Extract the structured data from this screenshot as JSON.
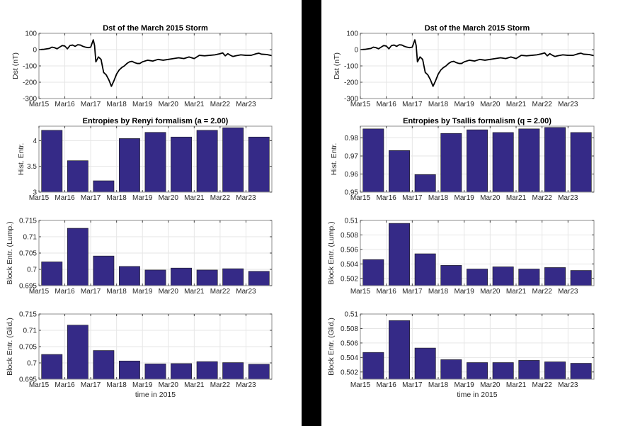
{
  "figure": {
    "panels": [
      {
        "side": "left",
        "xlabel_bottom": "time in 2015"
      },
      {
        "side": "right",
        "xlabel_bottom": "time in 2015"
      }
    ]
  },
  "chart_data": [
    {
      "id": "left-dst",
      "type": "line",
      "title": "Dst of the March 2015 Storm",
      "xlabel": "",
      "ylabel": "Dst (nT)",
      "ylim": [
        -300,
        100
      ],
      "yticks": [
        100,
        0,
        -100,
        -200,
        -300
      ],
      "xlim": [
        0,
        9
      ],
      "xticks": [
        "Mar15",
        "Mar16",
        "Mar17",
        "Mar18",
        "Mar19",
        "Mar20",
        "Mar21",
        "Mar22",
        "Mar23"
      ],
      "grid": true,
      "color": "#000000",
      "x": [
        0,
        0.2,
        0.4,
        0.5,
        0.6,
        0.7,
        0.8,
        0.9,
        1.0,
        1.1,
        1.2,
        1.3,
        1.4,
        1.5,
        1.6,
        1.7,
        1.8,
        1.9,
        2.0,
        2.1,
        2.15,
        2.2,
        2.3,
        2.4,
        2.5,
        2.6,
        2.7,
        2.8,
        2.9,
        3.0,
        3.1,
        3.2,
        3.3,
        3.4,
        3.5,
        3.6,
        3.7,
        3.8,
        3.9,
        4.0,
        4.2,
        4.4,
        4.6,
        4.8,
        5.0,
        5.2,
        5.4,
        5.6,
        5.8,
        6.0,
        6.2,
        6.4,
        6.6,
        6.8,
        7.0,
        7.1,
        7.2,
        7.3,
        7.4,
        7.5,
        7.6,
        7.8,
        8.0,
        8.2,
        8.4,
        8.5,
        8.6,
        8.8,
        9.0
      ],
      "y": [
        0,
        2,
        7,
        15,
        12,
        5,
        15,
        25,
        22,
        5,
        25,
        28,
        20,
        30,
        28,
        20,
        15,
        12,
        15,
        60,
        25,
        -75,
        -45,
        -60,
        -140,
        -155,
        -185,
        -225,
        -190,
        -150,
        -125,
        -110,
        -100,
        -85,
        -75,
        -72,
        -80,
        -85,
        -85,
        -75,
        -65,
        -70,
        -60,
        -65,
        -60,
        -55,
        -50,
        -55,
        -45,
        -55,
        -35,
        -38,
        -35,
        -32,
        -25,
        -20,
        -38,
        -25,
        -35,
        -42,
        -38,
        -32,
        -35,
        -35,
        -25,
        -22,
        -28,
        -30,
        -37
      ]
    },
    {
      "id": "left-renyi",
      "type": "bar",
      "title": "Entropies by Renyi formalism (a = 2.00)",
      "xlabel": "",
      "ylabel": "Hist. Entr.",
      "ylim": [
        3,
        4.28
      ],
      "yticks": [
        3,
        3.5,
        4
      ],
      "ytick_labels": [
        "3",
        "3.5",
        "4"
      ],
      "categories": [
        "Mar15",
        "Mar16",
        "Mar17",
        "Mar18",
        "Mar19",
        "Mar20",
        "Mar21",
        "Mar22",
        "Mar23"
      ],
      "values": [
        4.2,
        3.61,
        3.22,
        4.04,
        4.16,
        4.07,
        4.2,
        4.25,
        4.07
      ],
      "grid": true,
      "color": "#352a87"
    },
    {
      "id": "left-lump",
      "type": "bar",
      "title": "",
      "xlabel": "",
      "ylabel": "Block Entr. (Lump.)",
      "ylim": [
        0.695,
        0.715
      ],
      "yticks": [
        0.695,
        0.7,
        0.705,
        0.71,
        0.715
      ],
      "ytick_labels": [
        "0.695",
        "0.7",
        "0.705",
        "0.71",
        "0.715"
      ],
      "categories": [
        "Mar15",
        "Mar16",
        "Mar17",
        "Mar18",
        "Mar19",
        "Mar20",
        "Mar21",
        "Mar22",
        "Mar23"
      ],
      "values": [
        0.7023,
        0.7126,
        0.7041,
        0.7009,
        0.6998,
        0.7004,
        0.6998,
        0.7002,
        0.6994
      ],
      "grid": true,
      "color": "#352a87"
    },
    {
      "id": "left-glid",
      "type": "bar",
      "title": "",
      "xlabel": "time in 2015",
      "ylabel": "Block Entr. (Glid.)",
      "ylim": [
        0.695,
        0.715
      ],
      "yticks": [
        0.695,
        0.7,
        0.705,
        0.71,
        0.715
      ],
      "ytick_labels": [
        "0.695",
        "0.7",
        "0.705",
        "0.71",
        "0.715"
      ],
      "categories": [
        "Mar15",
        "Mar16",
        "Mar17",
        "Mar18",
        "Mar19",
        "Mar20",
        "Mar21",
        "Mar22",
        "Mar23"
      ],
      "values": [
        0.7026,
        0.7116,
        0.7038,
        0.7006,
        0.6997,
        0.6998,
        0.7004,
        0.7001,
        0.6996
      ],
      "grid": true,
      "color": "#352a87"
    },
    {
      "id": "right-dst",
      "type": "line",
      "title": "Dst of the March 2015 Storm",
      "xlabel": "",
      "ylabel": "Dst (nT)",
      "ylim": [
        -300,
        100
      ],
      "yticks": [
        100,
        0,
        -100,
        -200,
        -300
      ],
      "xlim": [
        0,
        9
      ],
      "xticks": [
        "Mar15",
        "Mar16",
        "Mar17",
        "Mar18",
        "Mar19",
        "Mar20",
        "Mar21",
        "Mar22",
        "Mar23"
      ],
      "grid": true,
      "color": "#000000",
      "x": [
        0,
        0.2,
        0.4,
        0.5,
        0.6,
        0.7,
        0.8,
        0.9,
        1.0,
        1.1,
        1.2,
        1.3,
        1.4,
        1.5,
        1.6,
        1.7,
        1.8,
        1.9,
        2.0,
        2.1,
        2.15,
        2.2,
        2.3,
        2.4,
        2.5,
        2.6,
        2.7,
        2.8,
        2.9,
        3.0,
        3.1,
        3.2,
        3.3,
        3.4,
        3.5,
        3.6,
        3.7,
        3.8,
        3.9,
        4.0,
        4.2,
        4.4,
        4.6,
        4.8,
        5.0,
        5.2,
        5.4,
        5.6,
        5.8,
        6.0,
        6.2,
        6.4,
        6.6,
        6.8,
        7.0,
        7.1,
        7.2,
        7.3,
        7.4,
        7.5,
        7.6,
        7.8,
        8.0,
        8.2,
        8.4,
        8.5,
        8.6,
        8.8,
        9.0
      ],
      "y": [
        0,
        2,
        7,
        15,
        12,
        5,
        15,
        25,
        22,
        5,
        25,
        28,
        20,
        30,
        28,
        20,
        15,
        12,
        15,
        60,
        25,
        -75,
        -45,
        -60,
        -140,
        -155,
        -185,
        -225,
        -190,
        -150,
        -125,
        -110,
        -100,
        -85,
        -75,
        -72,
        -80,
        -85,
        -85,
        -75,
        -65,
        -70,
        -60,
        -65,
        -60,
        -55,
        -50,
        -55,
        -45,
        -55,
        -35,
        -38,
        -35,
        -32,
        -25,
        -20,
        -38,
        -25,
        -35,
        -42,
        -38,
        -32,
        -35,
        -35,
        -25,
        -22,
        -28,
        -30,
        -37
      ]
    },
    {
      "id": "right-tsallis",
      "type": "bar",
      "title": "Entropies by Tsallis formalism (q = 2.00)",
      "xlabel": "",
      "ylabel": "Hist. Entr.",
      "ylim": [
        0.95,
        0.9865
      ],
      "yticks": [
        0.95,
        0.96,
        0.97,
        0.98
      ],
      "ytick_labels": [
        "0.95",
        "0.96",
        "0.97",
        "0.98"
      ],
      "categories": [
        "Mar15",
        "Mar16",
        "Mar17",
        "Mar18",
        "Mar19",
        "Mar20",
        "Mar21",
        "Mar22",
        "Mar23"
      ],
      "values": [
        0.985,
        0.973,
        0.9597,
        0.9825,
        0.9845,
        0.983,
        0.985,
        0.9858,
        0.983
      ],
      "grid": true,
      "color": "#352a87"
    },
    {
      "id": "right-lump",
      "type": "bar",
      "title": "",
      "xlabel": "",
      "ylabel": "Block Entr. (Lump.)",
      "ylim": [
        0.501,
        0.51
      ],
      "yticks": [
        0.502,
        0.504,
        0.506,
        0.508,
        0.51
      ],
      "ytick_labels": [
        "0.502",
        "0.504",
        "0.506",
        "0.508",
        "0.51"
      ],
      "categories": [
        "Mar15",
        "Mar16",
        "Mar17",
        "Mar18",
        "Mar19",
        "Mar20",
        "Mar21",
        "Mar22",
        "Mar23"
      ],
      "values": [
        0.5046,
        0.5096,
        0.5054,
        0.5038,
        0.5033,
        0.5036,
        0.5033,
        0.5035,
        0.5031
      ],
      "grid": true,
      "color": "#352a87"
    },
    {
      "id": "right-glid",
      "type": "bar",
      "title": "",
      "xlabel": "time in 2015",
      "ylabel": "Block Entr. (Glid.)",
      "ylim": [
        0.501,
        0.51
      ],
      "yticks": [
        0.502,
        0.504,
        0.506,
        0.508,
        0.51
      ],
      "ytick_labels": [
        "0.502",
        "0.504",
        "0.506",
        "0.508",
        "0.51"
      ],
      "categories": [
        "Mar15",
        "Mar16",
        "Mar17",
        "Mar18",
        "Mar19",
        "Mar20",
        "Mar21",
        "Mar22",
        "Mar23"
      ],
      "values": [
        0.5047,
        0.5091,
        0.5053,
        0.5037,
        0.5033,
        0.5033,
        0.5036,
        0.5034,
        0.5032
      ],
      "grid": true,
      "color": "#352a87"
    }
  ]
}
